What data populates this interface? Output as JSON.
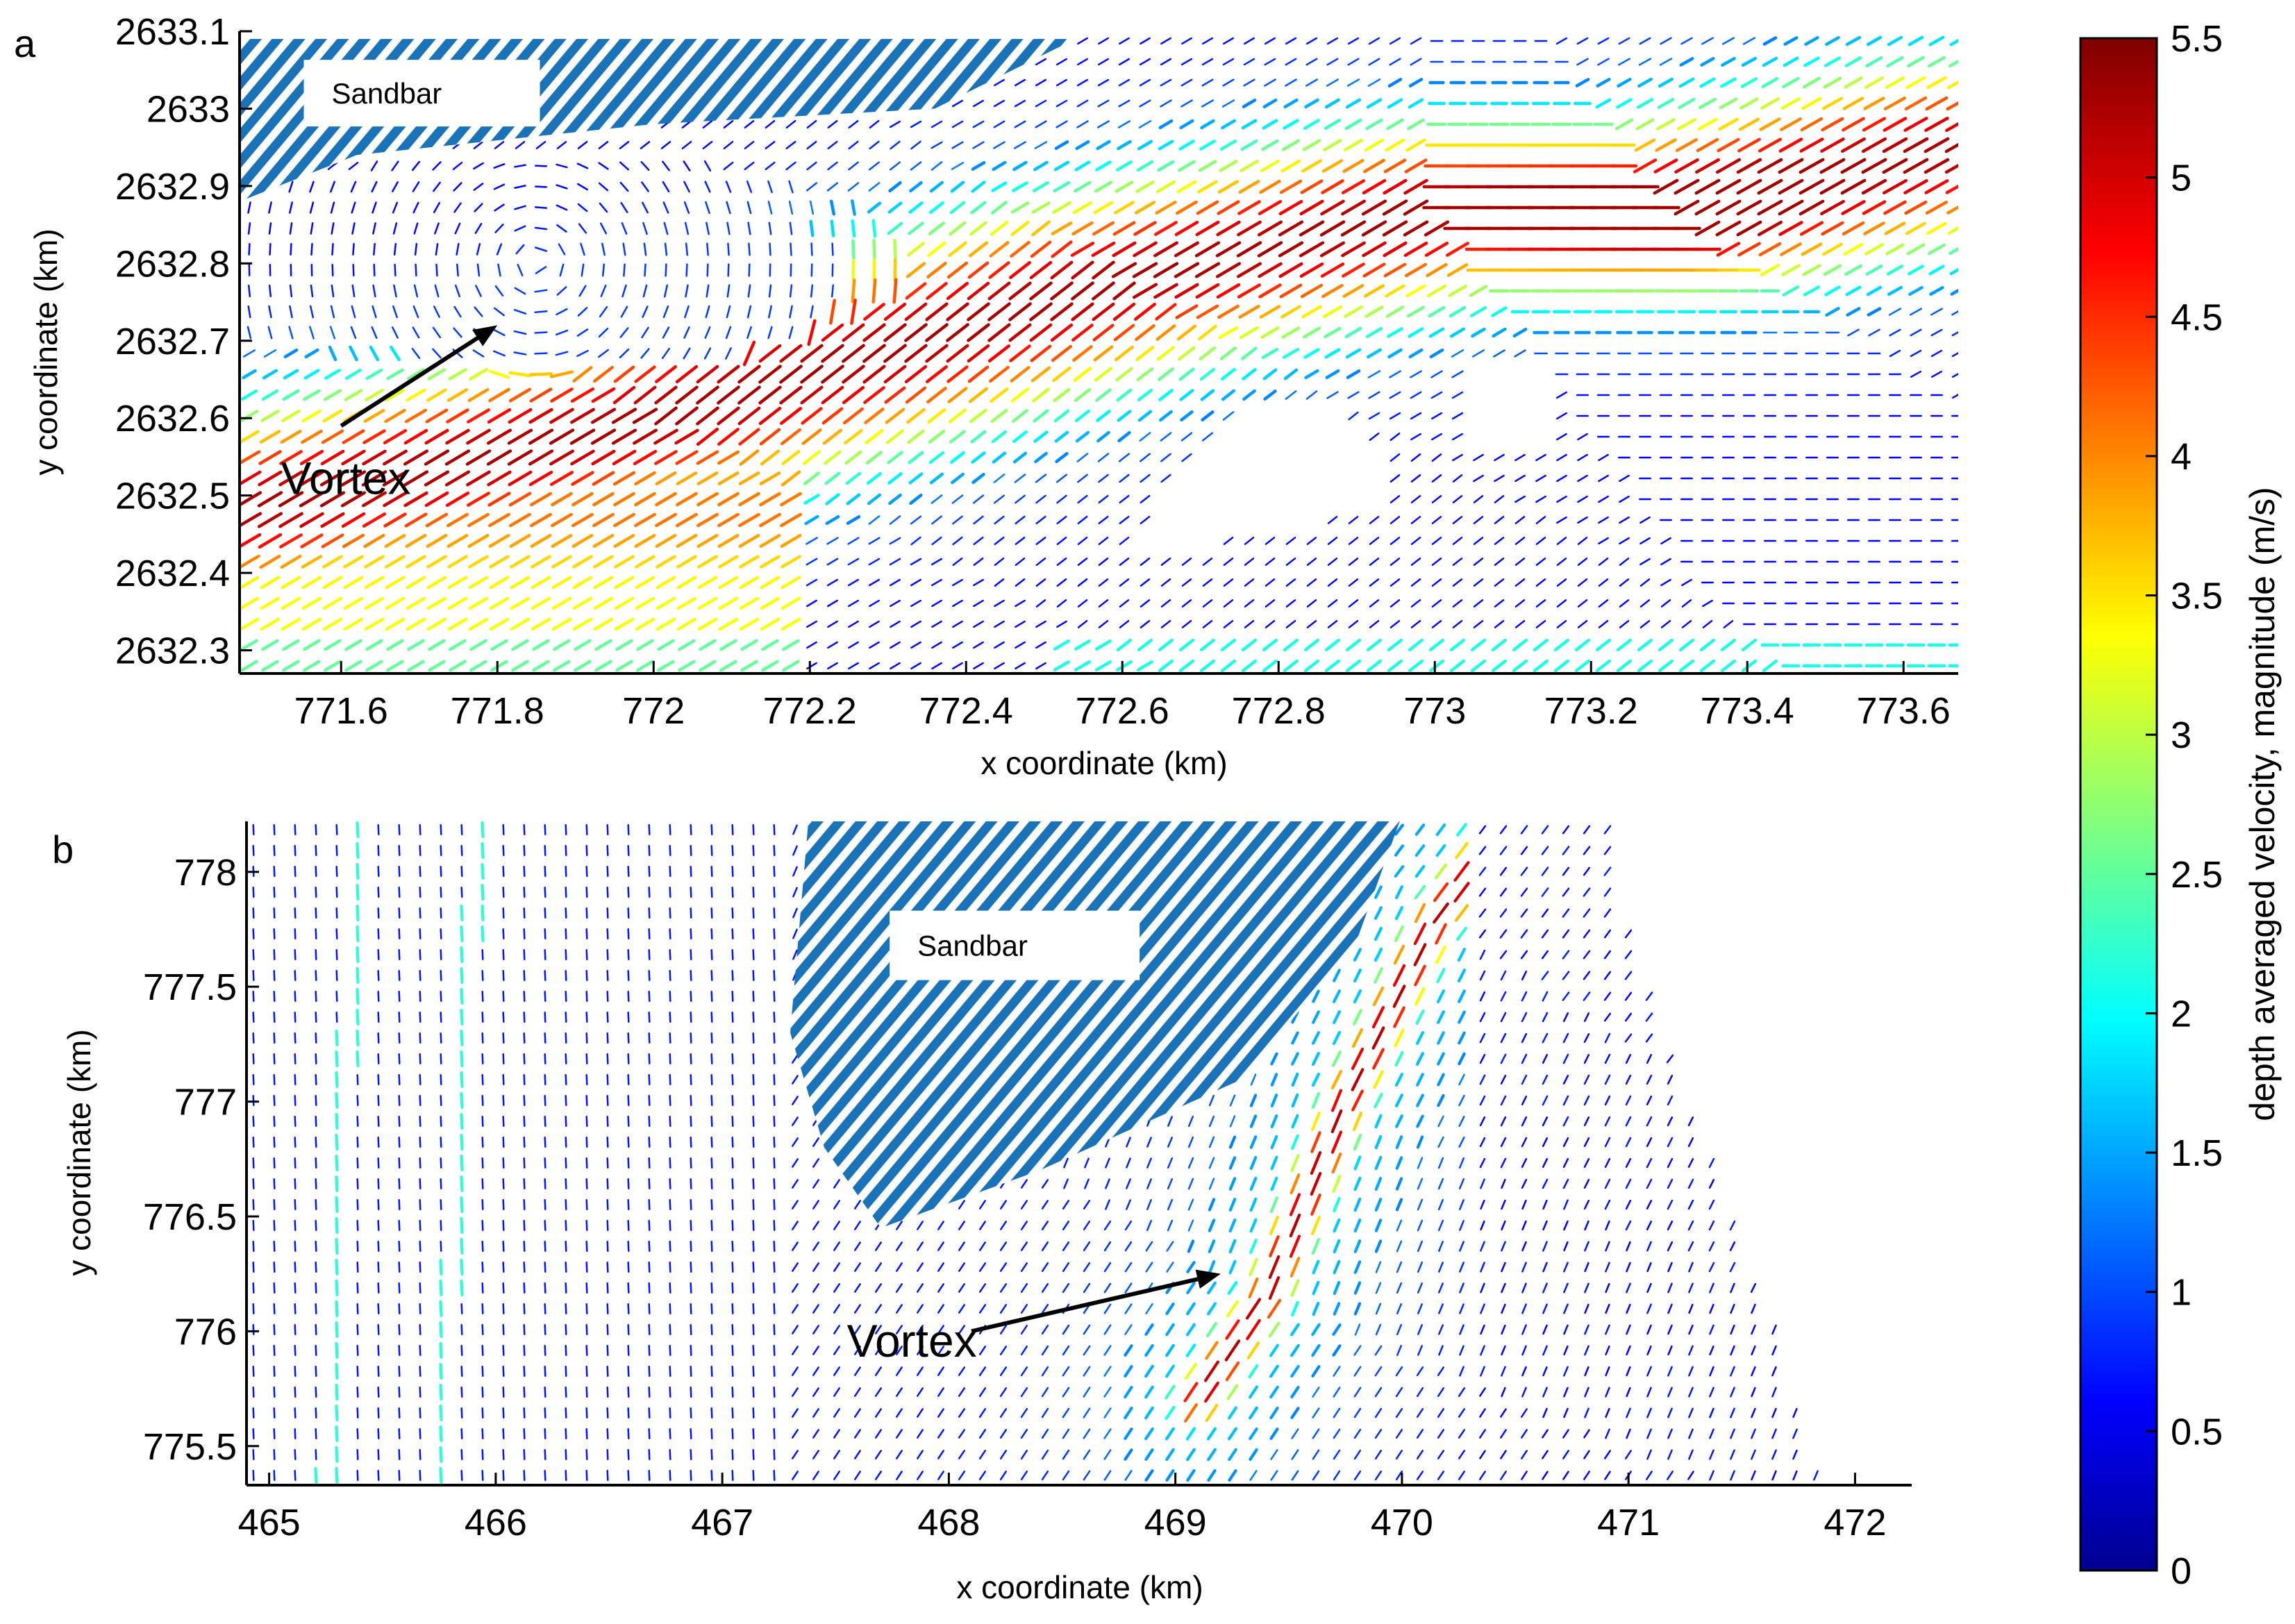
{
  "chart_data": [
    {
      "type": "quiver",
      "panel_label": "a",
      "xlabel": "x coordinate (km)",
      "ylabel": "y coordinate (km)",
      "xlim": [
        771.47,
        773.67
      ],
      "ylim": [
        2632.27,
        2633.1
      ],
      "xticks": [
        771.6,
        771.8,
        772,
        772.2,
        772.4,
        772.6,
        772.8,
        773,
        773.2,
        773.4,
        773.6
      ],
      "yticks": [
        2632.3,
        2632.4,
        2632.5,
        2632.6,
        2632.7,
        2632.8,
        2632.9,
        2633,
        2633.1
      ],
      "xtick_labels": [
        "771.6",
        "771.8",
        "772",
        "772.2",
        "772.4",
        "772.6",
        "772.8",
        "773",
        "773.2",
        "773.4",
        "773.6"
      ],
      "ytick_labels": [
        "2632.3",
        "2632.4",
        "2632.5",
        "2632.6",
        "2632.7",
        "2632.8",
        "2632.9",
        "2633",
        "2633.1"
      ],
      "annotations": [
        {
          "text": "Vortex",
          "x": 771.53,
          "y": 2632.52,
          "arrow_from": [
            771.6,
            2632.59
          ],
          "arrow_to": [
            771.8,
            2632.72
          ]
        }
      ],
      "sandbar": {
        "label": "Sandbar",
        "label_x": 771.57,
        "label_y": 2633.02,
        "outline": [
          [
            771.47,
            2633.09
          ],
          [
            772.54,
            2633.09
          ],
          [
            772.36,
            2633.0
          ],
          [
            772.0,
            2632.98
          ],
          [
            771.62,
            2632.94
          ],
          [
            771.47,
            2632.88
          ]
        ]
      },
      "flow": {
        "main_jet": "west-to-east jet, max ~4.9 m/s near (773.3, 2632.85)",
        "jet_path": [
          [
            771.47,
            2632.48
          ],
          [
            772.0,
            2632.6
          ],
          [
            772.6,
            2632.78
          ],
          [
            773.0,
            2632.87
          ],
          [
            773.3,
            2632.87
          ],
          [
            773.67,
            2632.95
          ]
        ],
        "dry_areas": [
          [
            [
              772.6,
              2632.43
            ],
            [
              772.8,
              2632.45
            ],
            [
              772.95,
              2632.5
            ],
            [
              772.9,
              2632.6
            ],
            [
              772.75,
              2632.62
            ]
          ],
          [
            [
              773.04,
              2632.55
            ],
            [
              773.15,
              2632.55
            ],
            [
              773.15,
              2632.66
            ],
            [
              773.04,
              2632.66
            ]
          ]
        ]
      }
    },
    {
      "type": "quiver",
      "panel_label": "b",
      "xlabel": "x coordinate (km)",
      "ylabel": "y coordinate (km)",
      "xlim": [
        464.9,
        472.25
      ],
      "ylim": [
        775.33,
        778.22
      ],
      "xticks": [
        465,
        466,
        467,
        468,
        469,
        470,
        471,
        472
      ],
      "yticks": [
        775.5,
        776,
        776.5,
        777,
        777.5,
        778
      ],
      "xtick_labels": [
        "465",
        "466",
        "467",
        "468",
        "469",
        "470",
        "471",
        "472"
      ],
      "ytick_labels": [
        "775.5",
        "776",
        "776.5",
        "777",
        "777.5",
        "778"
      ],
      "annotations": [
        {
          "text": "Vortex",
          "x": 467.55,
          "y": 775.95,
          "arrow_from": [
            468.1,
            776.0
          ],
          "arrow_to": [
            469.2,
            776.25
          ]
        }
      ],
      "sandbar": {
        "label": "Sandbar",
        "label_x": 467.8,
        "label_y": 777.68,
        "outline": [
          [
            467.38,
            778.22
          ],
          [
            469.99,
            778.22
          ],
          [
            469.8,
            777.7
          ],
          [
            469.3,
            777.1
          ],
          [
            468.4,
            776.7
          ],
          [
            467.7,
            776.45
          ],
          [
            467.45,
            776.8
          ],
          [
            467.3,
            777.3
          ]
        ]
      },
      "flow": {
        "main_jet": "narrow SW-NE jet, max ~4.7 m/s near (469.4, 776.2)",
        "jet_path": [
          [
            469.1,
            775.7
          ],
          [
            469.4,
            776.15
          ],
          [
            469.75,
            777.0
          ],
          [
            470.15,
            777.8
          ],
          [
            470.45,
            778.2
          ]
        ],
        "wet_extent_right": [
          [
            470.9,
            778.22
          ],
          [
            471.05,
            777.6
          ],
          [
            471.35,
            776.8
          ],
          [
            471.65,
            776.0
          ],
          [
            471.85,
            775.33
          ]
        ]
      }
    },
    {
      "type": "colorbar",
      "label": "depth averaged velocity, magnitude (m/s)",
      "colormap": "jet",
      "range": [
        0,
        5.5
      ],
      "ticks": [
        0,
        0.5,
        1,
        1.5,
        2,
        2.5,
        3,
        3.5,
        4,
        4.5,
        5,
        5.5
      ],
      "tick_labels": [
        "0",
        "0.5",
        "1",
        "1.5",
        "2",
        "2.5",
        "3",
        "3.5",
        "4",
        "4.5",
        "5",
        "5.5"
      ]
    }
  ],
  "colors": {
    "sandbar_hatch": "#1f77b4",
    "axis": "#000000",
    "background": "#ffffff"
  }
}
